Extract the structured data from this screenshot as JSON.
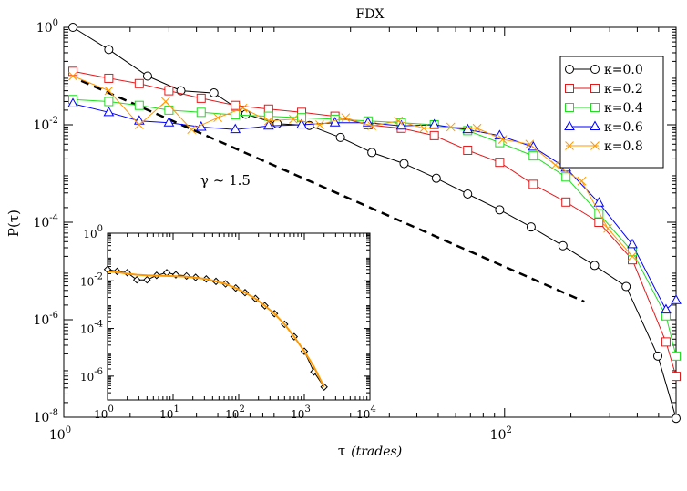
{
  "chart_data": [
    {
      "type": "line",
      "title": "FDX",
      "xlabel": "τ",
      "xlabel_unit": "(trades)",
      "ylabel": "P(τ)",
      "xscale": "log",
      "yscale": "log",
      "xlim": [
        1,
        600
      ],
      "ylim": [
        1e-08,
        1
      ],
      "x_ticks": [
        {
          "value": 1,
          "base": "10",
          "exp": "0"
        },
        {
          "value": 100,
          "base": "10",
          "exp": "2"
        }
      ],
      "y_ticks": [
        {
          "value": 1,
          "base": "10",
          "exp": "0"
        },
        {
          "value": 0.01,
          "base": "10",
          "exp": "-2"
        },
        {
          "value": 0.0001,
          "base": "10",
          "exp": "-4"
        },
        {
          "value": 1e-06,
          "base": "10",
          "exp": "-6"
        },
        {
          "value": 1e-08,
          "base": "10",
          "exp": "-8"
        }
      ],
      "legend_position": "top-right",
      "annotation": {
        "text": "γ ~ 1.5",
        "ref_slope": -1.5,
        "ref_line": [
          [
            1.2,
            0.08
          ],
          [
            230,
            2.35e-06
          ]
        ]
      },
      "series": [
        {
          "name": "κ=0.0",
          "color": "#000000",
          "marker": "circle",
          "x": [
            1.1,
            1.6,
            2.4,
            3.4,
            4.8,
            6.7,
            9.3,
            13,
            18,
            25,
            35,
            49,
            68,
            95,
            132,
            184,
            256,
            356,
            496,
            600
          ],
          "y": [
            1.0,
            0.35,
            0.1,
            0.05,
            0.045,
            0.0165,
            0.0105,
            0.0097,
            0.0055,
            0.0027,
            0.0016,
            0.0008,
            0.00038,
            0.00018,
            8e-05,
            3.3e-05,
            1.3e-05,
            4.8e-06,
            1.8e-07,
            9.5e-09
          ]
        },
        {
          "name": "κ=0.2",
          "color": "#e31a1c",
          "marker": "square",
          "x": [
            1.1,
            1.6,
            2.2,
            3,
            4.2,
            6,
            8.5,
            12,
            17,
            24,
            34,
            48,
            68,
            95,
            135,
            190,
            268,
            380,
            540,
            600
          ],
          "y": [
            0.125,
            0.09,
            0.07,
            0.05,
            0.035,
            0.025,
            0.021,
            0.018,
            0.015,
            0.01,
            0.0085,
            0.006,
            0.003,
            0.0017,
            0.0006,
            0.00026,
            0.0001,
            1.7e-05,
            3.5e-07,
            6.9e-08
          ]
        },
        {
          "name": "κ=0.4",
          "color": "#22dd22",
          "marker": "square",
          "x": [
            1.1,
            1.6,
            2.2,
            3,
            4.2,
            6,
            8.5,
            12,
            17,
            24,
            34,
            48,
            68,
            95,
            135,
            190,
            268,
            380,
            540,
            600
          ],
          "y": [
            0.033,
            0.03,
            0.025,
            0.02,
            0.018,
            0.016,
            0.015,
            0.014,
            0.013,
            0.012,
            0.011,
            0.01,
            0.0076,
            0.0043,
            0.0023,
            0.00085,
            0.00015,
            2.5e-05,
            1.2e-06,
            1.8e-07
          ]
        },
        {
          "name": "κ=0.6",
          "color": "#0000ff",
          "marker": "triangle",
          "x": [
            1.1,
            1.6,
            2.2,
            3,
            4.2,
            6,
            8.5,
            12,
            17,
            24,
            34,
            48,
            68,
            95,
            135,
            190,
            268,
            380,
            540,
            600
          ],
          "y": [
            0.027,
            0.018,
            0.012,
            0.011,
            0.009,
            0.008,
            0.0095,
            0.01,
            0.011,
            0.011,
            0.0095,
            0.01,
            0.008,
            0.006,
            0.0035,
            0.0013,
            0.00025,
            3.5e-05,
            1.6e-06,
            2.5e-06
          ]
        },
        {
          "name": "κ=0.8",
          "color": "#ff9900",
          "marker": "cross",
          "x": [
            1.1,
            1.6,
            2.2,
            2.9,
            3.8,
            5,
            6.5,
            8.5,
            11,
            14.5,
            19,
            25,
            33,
            43,
            57,
            75,
            98,
            130,
            170,
            224,
            294,
            380
          ],
          "y": [
            0.1,
            0.05,
            0.01,
            0.03,
            0.008,
            0.014,
            0.022,
            0.012,
            0.013,
            0.01,
            0.014,
            0.0095,
            0.012,
            0.0085,
            0.009,
            0.0085,
            0.005,
            0.004,
            0.0015,
            0.0007,
            7.5e-05,
            2e-05
          ]
        }
      ]
    },
    {
      "type": "line",
      "title": "",
      "xscale": "log",
      "yscale": "log",
      "xlim": [
        1,
        10000
      ],
      "ylim": [
        1e-07,
        1
      ],
      "x_ticks": [
        {
          "value": 1,
          "base": "10",
          "exp": "0"
        },
        {
          "value": 10,
          "base": "10",
          "exp": "1"
        },
        {
          "value": 100,
          "base": "10",
          "exp": "2"
        },
        {
          "value": 1000,
          "base": "10",
          "exp": "3"
        },
        {
          "value": 10000,
          "base": "10",
          "exp": "4"
        }
      ],
      "y_ticks": [
        {
          "value": 1,
          "base": "10",
          "exp": "0"
        },
        {
          "value": 0.01,
          "base": "10",
          "exp": "-2"
        },
        {
          "value": 0.0001,
          "base": "10",
          "exp": "-4"
        },
        {
          "value": 1e-06,
          "base": "10",
          "exp": "-6"
        }
      ],
      "series": [
        {
          "color": "#000000",
          "marker": "diamond",
          "x": [
            1,
            1.4,
            2,
            2.8,
            4,
            5.6,
            8,
            11,
            16,
            22,
            32,
            45,
            63,
            90,
            125,
            180,
            250,
            350,
            500,
            700,
            1000,
            1400,
            2000
          ],
          "y": [
            0.03,
            0.025,
            0.022,
            0.011,
            0.011,
            0.017,
            0.022,
            0.018,
            0.016,
            0.014,
            0.012,
            0.0095,
            0.0075,
            0.005,
            0.0032,
            0.0018,
            0.0009,
            0.00042,
            0.00015,
            4.5e-05,
            1.1e-05,
            1.5e-06,
            3.5e-07
          ]
        },
        {
          "color": "#ff9900",
          "marker": "none",
          "x": [
            1,
            1.4,
            2,
            2.8,
            4,
            5.6,
            8,
            11,
            16,
            22,
            32,
            45,
            63,
            90,
            125,
            180,
            250,
            350,
            500,
            700,
            1000,
            1400,
            2000
          ],
          "y": [
            0.025,
            0.023,
            0.02,
            0.018,
            0.017,
            0.0165,
            0.016,
            0.0155,
            0.015,
            0.0135,
            0.012,
            0.0095,
            0.0075,
            0.005,
            0.0032,
            0.0018,
            0.0009,
            0.00042,
            0.00015,
            4.5e-05,
            1.1e-05,
            2.5e-06,
            3.5e-07
          ]
        }
      ]
    }
  ]
}
